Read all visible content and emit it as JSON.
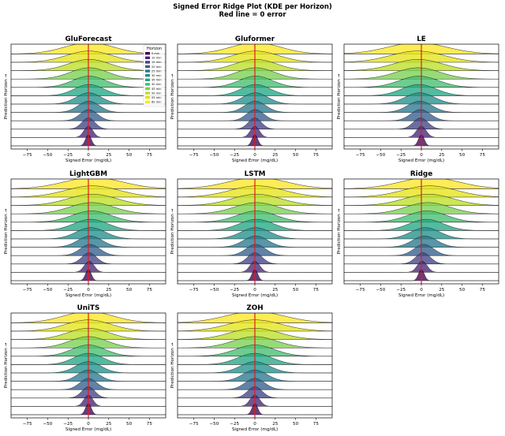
{
  "figure": {
    "title_line1": "Signed Error Ridge Plot (KDE per Horizon)",
    "title_line2": "Red line = 0 error",
    "zero_line_color": "#e41a1c"
  },
  "chart_data": {
    "type": "ridgeline",
    "xlabel": "Signed Error (mg/dL)",
    "ylabel": "Prediction Horizon →",
    "xlim": [
      -95,
      95
    ],
    "xticks": [
      -75,
      -50,
      -25,
      0,
      25,
      50,
      75
    ],
    "xtick_labels": [
      "−75",
      "−50",
      "−25",
      "0",
      "25",
      "50",
      "75"
    ],
    "reference_line_x": 0,
    "legend": {
      "title": "Horizon",
      "location": "upper right of first panel",
      "entries": [
        "5 min",
        "10 min",
        "15 min",
        "20 min",
        "25 min",
        "30 min",
        "35 min",
        "40 min",
        "45 min",
        "50 min",
        "55 min",
        "60 min"
      ],
      "colors": [
        "#440154",
        "#482475",
        "#414487",
        "#355f8d",
        "#2a788e",
        "#21918c",
        "#22a884",
        "#44bf70",
        "#7ad151",
        "#bddf26",
        "#e5e419",
        "#fde725"
      ]
    },
    "panels": [
      {
        "title": "GluForecast",
        "kde_std": [
          3.5,
          5.5,
          8,
          10.5,
          13,
          15.5,
          18,
          20.5,
          23,
          25.5,
          28,
          30.5
        ],
        "kde_mean": [
          0,
          0,
          0,
          0.5,
          0.5,
          0.5,
          1,
          1,
          1,
          1,
          1,
          1
        ]
      },
      {
        "title": "Gluformer",
        "kde_std": [
          3.5,
          5.5,
          8,
          10.5,
          13,
          15.5,
          18,
          20.5,
          23,
          25.5,
          28,
          30.5
        ],
        "kde_mean": [
          0,
          0,
          0,
          0.5,
          0.5,
          0.5,
          1,
          1,
          1,
          1,
          1,
          1
        ]
      },
      {
        "title": "LE",
        "kde_std": [
          3.5,
          6,
          9,
          12,
          15,
          18,
          21,
          24,
          27,
          30,
          33,
          36
        ],
        "kde_mean": [
          0,
          0,
          -1,
          -1,
          -2,
          -2,
          -3,
          -3,
          -4,
          -4,
          -5,
          -5
        ]
      },
      {
        "title": "LightGBM",
        "kde_std": [
          3.5,
          6,
          9,
          12,
          15,
          18,
          21,
          24,
          27,
          30,
          33,
          36
        ],
        "kde_mean": [
          0,
          1,
          1,
          2,
          2,
          3,
          3,
          4,
          4,
          5,
          5,
          6
        ]
      },
      {
        "title": "LSTM",
        "kde_std": [
          3.5,
          6,
          9,
          12,
          15,
          18,
          21,
          24,
          27,
          30,
          33,
          36
        ],
        "kde_mean": [
          0,
          0,
          0,
          1,
          1,
          1,
          2,
          2,
          2,
          2,
          3,
          3
        ]
      },
      {
        "title": "Ridge",
        "kde_std": [
          3.5,
          6,
          9,
          12,
          15,
          18,
          21,
          24,
          27,
          30,
          33,
          36
        ],
        "kde_mean": [
          0,
          1,
          2,
          3,
          4,
          5,
          6,
          7,
          8,
          9,
          10,
          10
        ]
      },
      {
        "title": "UniTS",
        "kde_std": [
          3.5,
          5.5,
          8,
          10.5,
          13,
          15.5,
          18,
          20.5,
          23,
          25.5,
          28,
          30.5
        ],
        "kde_mean": [
          0,
          0,
          0,
          0,
          0,
          0,
          0,
          0,
          0,
          0,
          0,
          0
        ]
      },
      {
        "title": "ZOH",
        "kde_std": [
          3.5,
          6,
          9,
          12,
          15,
          18,
          21,
          24,
          27,
          30,
          33,
          36
        ],
        "kde_mean": [
          0,
          0,
          0,
          0,
          0,
          0,
          0,
          0,
          0,
          0,
          0,
          0
        ]
      }
    ]
  }
}
